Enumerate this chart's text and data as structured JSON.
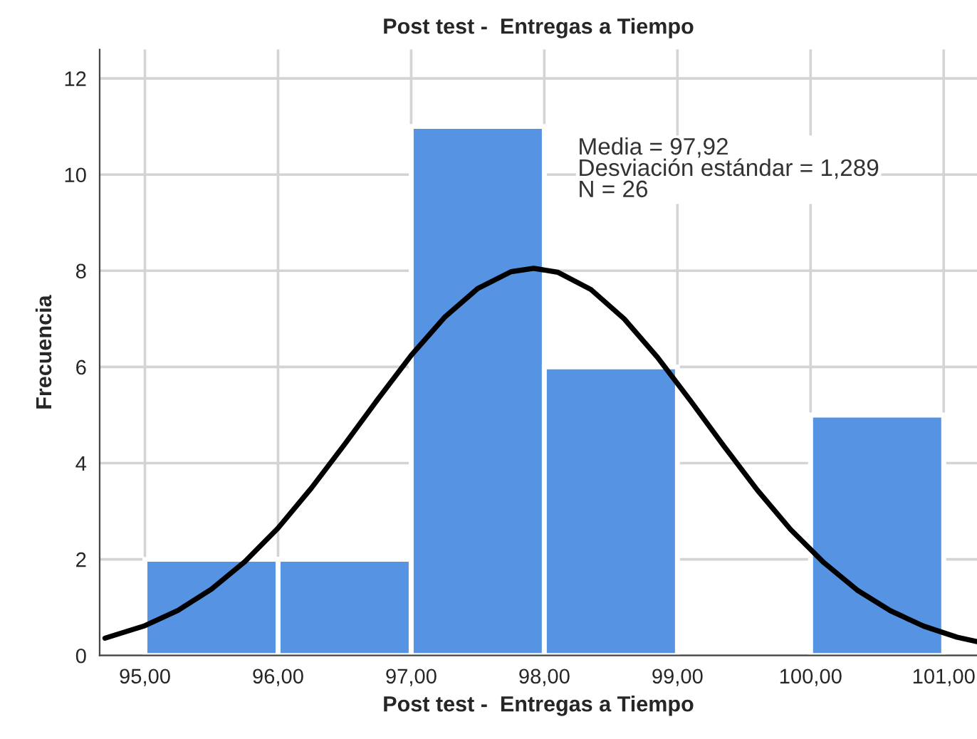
{
  "chart_data": {
    "type": "histogram",
    "title": "Post test -  Entregas a Tiempo",
    "xlabel": "Post test -  Entregas a Tiempo",
    "ylabel": "Frecuencia",
    "bins": [
      95,
      96,
      97,
      98,
      99,
      100,
      101
    ],
    "series": [
      {
        "type": "histogram",
        "color": "#5694e3",
        "values": [
          2,
          2,
          11,
          6,
          0,
          5
        ]
      },
      {
        "type": "line",
        "color": "#000000",
        "x": [
          94.7,
          95.0,
          95.25,
          95.5,
          95.75,
          96.0,
          96.25,
          96.5,
          96.75,
          97.0,
          97.25,
          97.5,
          97.75,
          97.92,
          98.1,
          98.35,
          98.6,
          98.85,
          99.1,
          99.35,
          99.6,
          99.85,
          100.1,
          100.35,
          100.6,
          100.85,
          101.1,
          101.25
        ],
        "values": [
          0.36,
          0.62,
          0.94,
          1.38,
          1.95,
          2.65,
          3.48,
          4.39,
          5.33,
          6.24,
          7.03,
          7.63,
          7.98,
          8.05,
          7.97,
          7.61,
          7.0,
          6.2,
          5.29,
          4.35,
          3.44,
          2.62,
          1.93,
          1.36,
          0.93,
          0.61,
          0.38,
          0.29
        ]
      }
    ],
    "annotations": [
      "Media = 97,92\nDesviación estándar = 1,289\nN = 26"
    ],
    "xlim": [
      94.66,
      101.25
    ],
    "ylim": [
      0,
      12.6
    ],
    "xticks": [
      {
        "value": 95,
        "label": "95,00"
      },
      {
        "value": 96,
        "label": "96,00"
      },
      {
        "value": 97,
        "label": "97,00"
      },
      {
        "value": 98,
        "label": "98,00"
      },
      {
        "value": 99,
        "label": "99,00"
      },
      {
        "value": 100,
        "label": "100,00"
      },
      {
        "value": 101,
        "label": "101,00"
      }
    ],
    "yticks": [
      0,
      2,
      4,
      6,
      8,
      10,
      12
    ],
    "grid": true,
    "legend": false
  }
}
